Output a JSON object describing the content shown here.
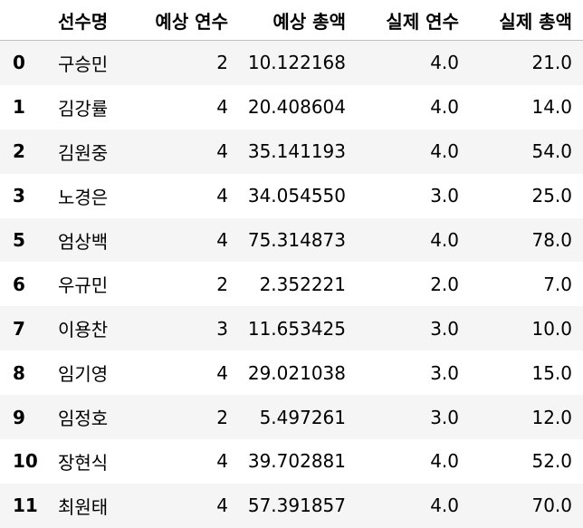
{
  "table": {
    "columns": {
      "index": "",
      "name": "선수명",
      "expected_years": "예상 연수",
      "expected_total": "예상 총액",
      "actual_years": "실제 연수",
      "actual_total": "실제 총액"
    },
    "rows": [
      {
        "index": "0",
        "name": "구승민",
        "expected_years": "2",
        "expected_total": "10.122168",
        "actual_years": "4.0",
        "actual_total": "21.0"
      },
      {
        "index": "1",
        "name": "김강률",
        "expected_years": "4",
        "expected_total": "20.408604",
        "actual_years": "4.0",
        "actual_total": "14.0"
      },
      {
        "index": "2",
        "name": "김원중",
        "expected_years": "4",
        "expected_total": "35.141193",
        "actual_years": "4.0",
        "actual_total": "54.0"
      },
      {
        "index": "3",
        "name": "노경은",
        "expected_years": "4",
        "expected_total": "34.054550",
        "actual_years": "3.0",
        "actual_total": "25.0"
      },
      {
        "index": "5",
        "name": "엄상백",
        "expected_years": "4",
        "expected_total": "75.314873",
        "actual_years": "4.0",
        "actual_total": "78.0"
      },
      {
        "index": "6",
        "name": "우규민",
        "expected_years": "2",
        "expected_total": "2.352221",
        "actual_years": "2.0",
        "actual_total": "7.0"
      },
      {
        "index": "7",
        "name": "이용찬",
        "expected_years": "3",
        "expected_total": "11.653425",
        "actual_years": "3.0",
        "actual_total": "10.0"
      },
      {
        "index": "8",
        "name": "임기영",
        "expected_years": "4",
        "expected_total": "29.021038",
        "actual_years": "3.0",
        "actual_total": "15.0"
      },
      {
        "index": "9",
        "name": "임정호",
        "expected_years": "2",
        "expected_total": "5.497261",
        "actual_years": "3.0",
        "actual_total": "12.0"
      },
      {
        "index": "10",
        "name": "장현식",
        "expected_years": "4",
        "expected_total": "39.702881",
        "actual_years": "4.0",
        "actual_total": "52.0"
      },
      {
        "index": "11",
        "name": "최원태",
        "expected_years": "4",
        "expected_total": "57.391857",
        "actual_years": "4.0",
        "actual_total": "70.0"
      }
    ]
  },
  "colors": {
    "striped_row": "#f5f5f5",
    "header_border": "#bdbdbd",
    "text": "#000000"
  }
}
